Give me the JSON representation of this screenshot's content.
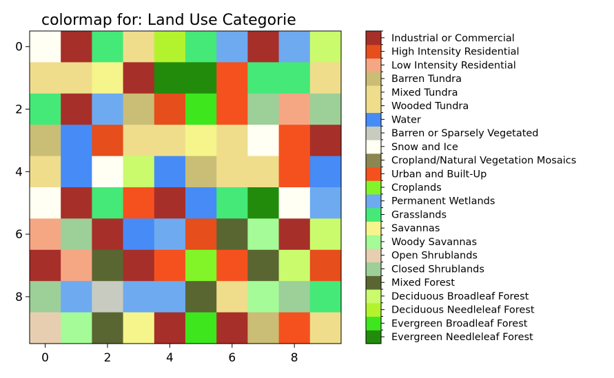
{
  "chart_data": {
    "type": "heatmap",
    "title": "colormap for: Land Use Categorie",
    "x_ticks": [
      0,
      2,
      4,
      6,
      8
    ],
    "y_ticks": [
      0,
      2,
      4,
      6,
      8
    ],
    "xlim": [
      -0.5,
      9.5
    ],
    "ylim": [
      9.5,
      -0.5
    ],
    "legend_position": "right",
    "categories": [
      {
        "name": "Evergreen Needleleaf Forest",
        "color": "#228b0c"
      },
      {
        "name": "Evergreen Broadleaf Forest",
        "color": "#3ee61e"
      },
      {
        "name": "Deciduous Needleleaf Forest",
        "color": "#b2f32e"
      },
      {
        "name": "Deciduous Broadleaf Forest",
        "color": "#c9fb6d"
      },
      {
        "name": "Mixed Forest",
        "color": "#5a6632"
      },
      {
        "name": "Closed Shrublands",
        "color": "#9dcf99"
      },
      {
        "name": "Open Shrublands",
        "color": "#e8ceb1"
      },
      {
        "name": "Woody Savannas",
        "color": "#a5fb97"
      },
      {
        "name": "Savannas",
        "color": "#f6f58b"
      },
      {
        "name": "Grasslands",
        "color": "#45e978"
      },
      {
        "name": "Permanent Wetlands",
        "color": "#6eaaf0"
      },
      {
        "name": "Croplands",
        "color": "#82f528"
      },
      {
        "name": "Urban and Built-Up",
        "color": "#f5511e"
      },
      {
        "name": "Cropland/Natural Vegetation Mosaics",
        "color": "#8c8750"
      },
      {
        "name": "Snow and Ice",
        "color": "#fffff3"
      },
      {
        "name": "Barren or Sparsely Vegetated",
        "color": "#c7cbc0"
      },
      {
        "name": "Water",
        "color": "#478bf6"
      },
      {
        "name": "Wooded Tundra",
        "color": "#efdd8c"
      },
      {
        "name": "Mixed Tundra",
        "color": "#eedd8c"
      },
      {
        "name": "Barren Tundra",
        "color": "#cabd75"
      },
      {
        "name": "Low Intensity Residential",
        "color": "#f5a784"
      },
      {
        "name": "High Intensity Residential",
        "color": "#e64e1b"
      },
      {
        "name": "Industrial or Commercial",
        "color": "#a72f29"
      }
    ],
    "grid": [
      [
        14,
        22,
        9,
        17,
        2,
        9,
        10,
        22,
        10,
        3
      ],
      [
        17,
        17,
        8,
        22,
        0,
        0,
        12,
        9,
        9,
        17
      ],
      [
        9,
        22,
        10,
        19,
        21,
        1,
        12,
        5,
        20,
        5
      ],
      [
        19,
        16,
        21,
        17,
        17,
        8,
        17,
        14,
        12,
        22
      ],
      [
        17,
        16,
        14,
        3,
        16,
        19,
        17,
        17,
        12,
        16
      ],
      [
        14,
        22,
        9,
        12,
        22,
        16,
        9,
        0,
        14,
        10
      ],
      [
        20,
        5,
        22,
        16,
        10,
        21,
        4,
        7,
        22,
        3
      ],
      [
        22,
        20,
        4,
        22,
        12,
        11,
        12,
        4,
        3,
        21
      ],
      [
        5,
        10,
        15,
        10,
        10,
        4,
        17,
        7,
        5,
        9
      ],
      [
        6,
        7,
        4,
        8,
        22,
        1,
        22,
        19,
        12,
        17
      ]
    ]
  }
}
